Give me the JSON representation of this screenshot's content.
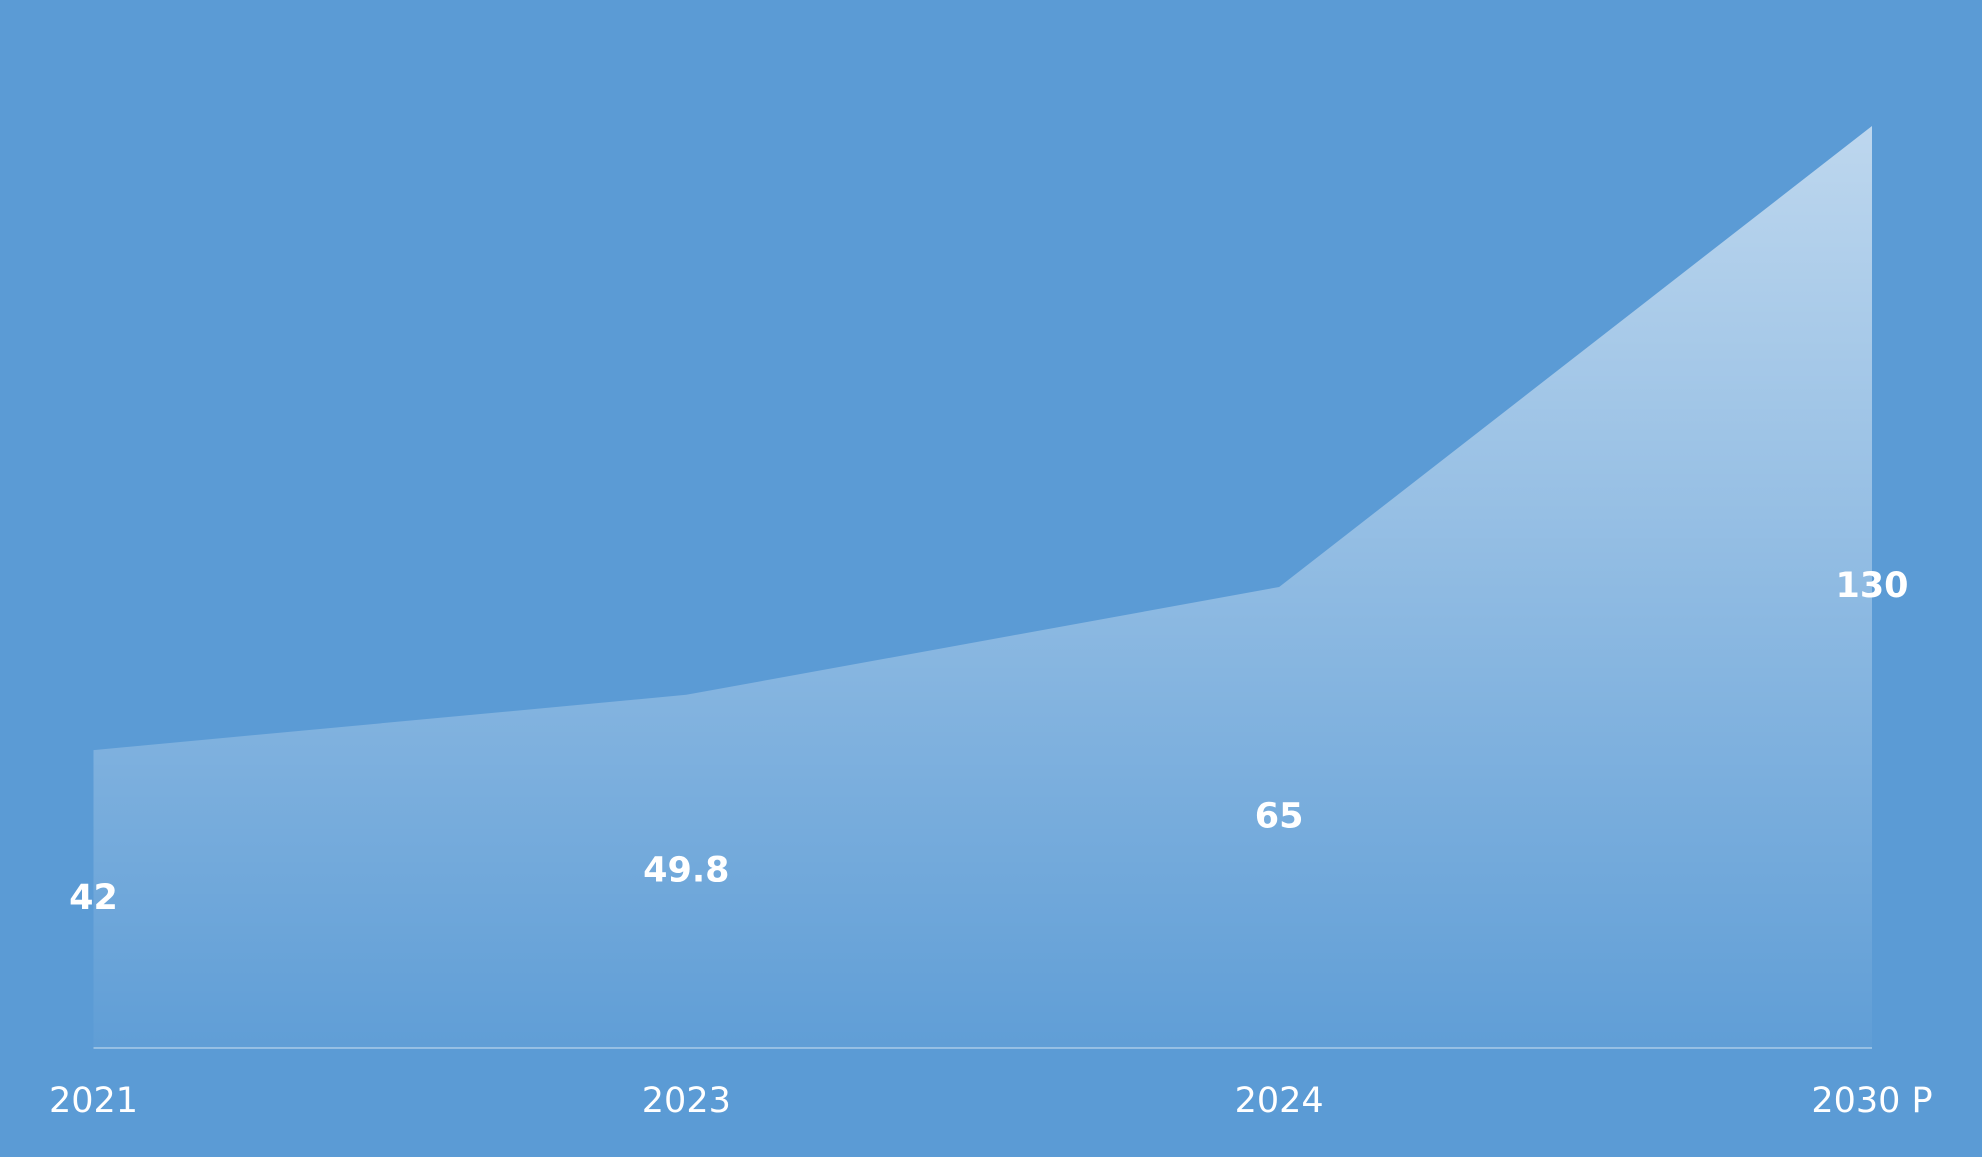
{
  "chart_data": {
    "type": "area",
    "categories": [
      "2021",
      "2023",
      "2024",
      "2030 P"
    ],
    "values": [
      42,
      49.8,
      65,
      130
    ],
    "color": "#ffffff"
  }
}
